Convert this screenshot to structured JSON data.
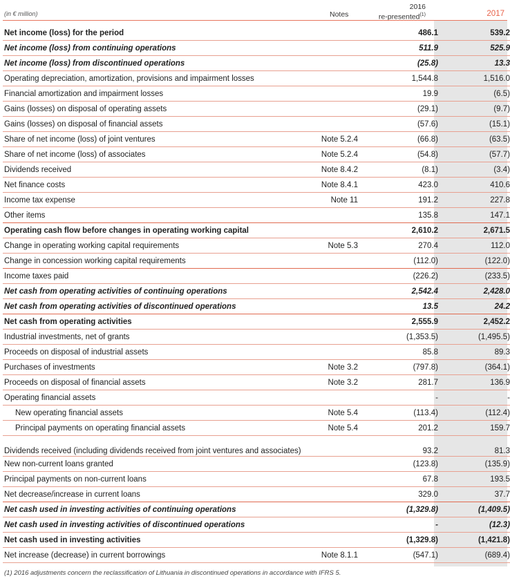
{
  "header": {
    "unit": "(in € million)",
    "notes": "Notes",
    "col2016_year": "2016",
    "col2016_sub": "re-presented",
    "col2016_sup": "(1)",
    "col2017": "2017"
  },
  "rows": [
    {
      "label": "Net income (loss) for the period",
      "note": "",
      "v2016": "486.1",
      "v2017": "539.2",
      "style": "bold"
    },
    {
      "label": "Net income (loss) from continuing operations",
      "note": "",
      "v2016": "511.9",
      "v2017": "525.9",
      "style": "bi"
    },
    {
      "label": "Net income (loss) from discontinued operations",
      "note": "",
      "v2016": "(25.8)",
      "v2017": "13.3",
      "style": "bi"
    },
    {
      "label": "Operating depreciation, amortization, provisions and impairment losses",
      "note": "",
      "v2016": "1,544.8",
      "v2017": "1,516.0",
      "style": ""
    },
    {
      "label": "Financial amortization and impairment losses",
      "note": "",
      "v2016": "19.9",
      "v2017": "(6.5)",
      "style": ""
    },
    {
      "label": "Gains (losses) on disposal of operating assets",
      "note": "",
      "v2016": "(29.1)",
      "v2017": "(9.7)",
      "style": ""
    },
    {
      "label": "Gains (losses) on disposal of financial assets",
      "note": "",
      "v2016": "(57.6)",
      "v2017": "(15.1)",
      "style": ""
    },
    {
      "label": "Share of net income (loss) of joint ventures",
      "note": "Note 5.2.4",
      "v2016": "(66.8)",
      "v2017": "(63.5)",
      "style": ""
    },
    {
      "label": "Share of net income (loss) of associates",
      "note": "Note 5.2.4",
      "v2016": "(54.8)",
      "v2017": "(57.7)",
      "style": ""
    },
    {
      "label": "Dividends received",
      "note": "Note 8.4.2",
      "v2016": "(8.1)",
      "v2017": "(3.4)",
      "style": ""
    },
    {
      "label": "Net finance costs",
      "note": "Note 8.4.1",
      "v2016": "423.0",
      "v2017": "410.6",
      "style": ""
    },
    {
      "label": "Income tax expense",
      "note": "Note 11",
      "v2016": "191.2",
      "v2017": "227.8",
      "style": ""
    },
    {
      "label": "Other items",
      "note": "",
      "v2016": "135.8",
      "v2017": "147.1",
      "style": ""
    },
    {
      "label": "Operating cash flow before changes in operating working capital",
      "note": "",
      "v2016": "2,610.2",
      "v2017": "2,671.5",
      "style": "bold"
    },
    {
      "label": "Change in operating working capital requirements",
      "note": "Note 5.3",
      "v2016": "270.4",
      "v2017": "112.0",
      "style": ""
    },
    {
      "label": "Change in concession working capital requirements",
      "note": "",
      "v2016": "(112.0)",
      "v2017": "(122.0)",
      "style": ""
    },
    {
      "label": "Income taxes paid",
      "note": "",
      "v2016": "(226.2)",
      "v2017": "(233.5)",
      "style": ""
    },
    {
      "label": "Net cash from operating activities of continuing operations",
      "note": "",
      "v2016": "2,542.4",
      "v2017": "2,428.0",
      "style": "bi"
    },
    {
      "label": "Net cash from operating activities of discontinued operations",
      "note": "",
      "v2016": "13.5",
      "v2017": "24.2",
      "style": "bi"
    },
    {
      "label": "Net cash from operating activities",
      "note": "",
      "v2016": "2,555.9",
      "v2017": "2,452.2",
      "style": "bold"
    },
    {
      "label": "Industrial investments, net of grants",
      "note": "",
      "v2016": "(1,353.5)",
      "v2017": "(1,495.5)",
      "style": ""
    },
    {
      "label": "Proceeds on disposal of industrial assets",
      "note": "",
      "v2016": "85.8",
      "v2017": "89.3",
      "style": ""
    },
    {
      "label": "Purchases of investments",
      "note": "Note 3.2",
      "v2016": "(797.8)",
      "v2017": "(364.1)",
      "style": ""
    },
    {
      "label": "Proceeds on disposal of financial assets",
      "note": "Note 3.2",
      "v2016": "281.7",
      "v2017": "136.9",
      "style": ""
    },
    {
      "label": "Operating financial assets",
      "note": "",
      "v2016": "-",
      "v2017": "-",
      "style": ""
    },
    {
      "label": "New operating financial assets",
      "note": "Note 5.4",
      "v2016": "(113.4)",
      "v2017": "(112.4)",
      "style": "sub"
    },
    {
      "label": "Principal payments on operating financial assets",
      "note": "Note 5.4",
      "v2016": "201.2",
      "v2017": "159.7",
      "style": "sub"
    },
    {
      "label": "Dividends received (including dividends received from joint ventures and associates)",
      "note": "",
      "v2016": "93.2",
      "v2017": "81.3",
      "style": "dbl"
    },
    {
      "label": "New non-current loans granted",
      "note": "",
      "v2016": "(123.8)",
      "v2017": "(135.9)",
      "style": ""
    },
    {
      "label": "Principal payments on non-current loans",
      "note": "",
      "v2016": "67.8",
      "v2017": "193.5",
      "style": ""
    },
    {
      "label": "Net decrease/increase in current loans",
      "note": "",
      "v2016": "329.0",
      "v2017": "37.7",
      "style": ""
    },
    {
      "label": "Net cash used in investing activities of continuing operations",
      "note": "",
      "v2016": "(1,329.8)",
      "v2017": "(1,409.5)",
      "style": "bi"
    },
    {
      "label": "Net cash used in investing activities of discontinued operations",
      "note": "",
      "v2016": "-",
      "v2017": "(12.3)",
      "style": "bi"
    },
    {
      "label": "Net cash used in investing activities",
      "note": "",
      "v2016": "(1,329.8)",
      "v2017": "(1,421.8)",
      "style": "bold"
    },
    {
      "label": "Net increase (decrease) in current borrowings",
      "note": "Note 8.1.1",
      "v2016": "(547.1)",
      "v2017": "(689.4)",
      "style": ""
    }
  ],
  "footnote": "(1) 2016 adjustments concern the reclassification of Lithuania in discontinued operations in accordance with IFRS 5."
}
